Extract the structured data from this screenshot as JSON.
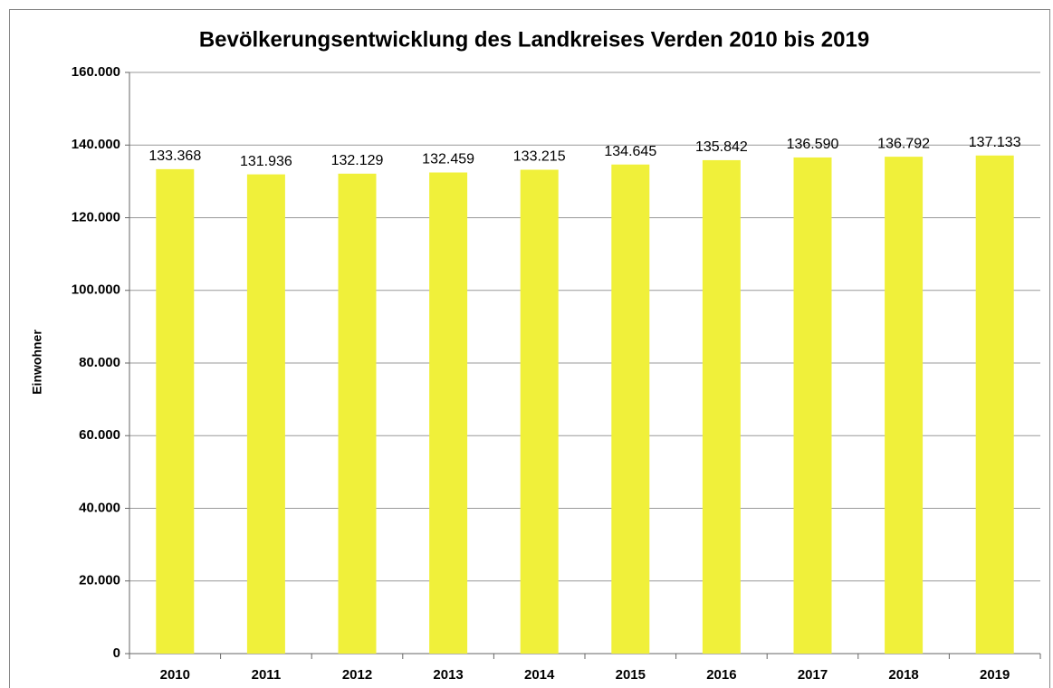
{
  "chart_data": {
    "type": "bar",
    "title": "Bevölkerungsentwicklung des Landkreises Verden 2010 bis 2019",
    "y_label": "Einwohner",
    "categories": [
      "2010",
      "2011",
      "2012",
      "2013",
      "2014",
      "2015",
      "2016",
      "2017",
      "2018",
      "2019"
    ],
    "values": [
      133368,
      131936,
      132129,
      132459,
      133215,
      134645,
      135842,
      136590,
      136792,
      137133
    ],
    "value_labels": [
      "133.368",
      "131.936",
      "132.129",
      "132.459",
      "133.215",
      "134.645",
      "135.842",
      "136.590",
      "136.792",
      "137.133"
    ],
    "color": "#f0f03a",
    "ylim": [
      0,
      160000
    ],
    "yticks": [
      0,
      {
        "value": 20000,
        "label": "20.000"
      },
      {
        "value": 40000,
        "label": "40.000"
      },
      {
        "value": 60000,
        "label": "60.000"
      },
      {
        "value": 80000,
        "label": "80.000"
      },
      {
        "value": 100000,
        "label": "100.000"
      },
      {
        "value": 120000,
        "label": "120.000"
      },
      {
        "value": 140000,
        "label": "140.000"
      },
      {
        "value": 160000,
        "label": "160.000"
      }
    ],
    "grid": true
  }
}
